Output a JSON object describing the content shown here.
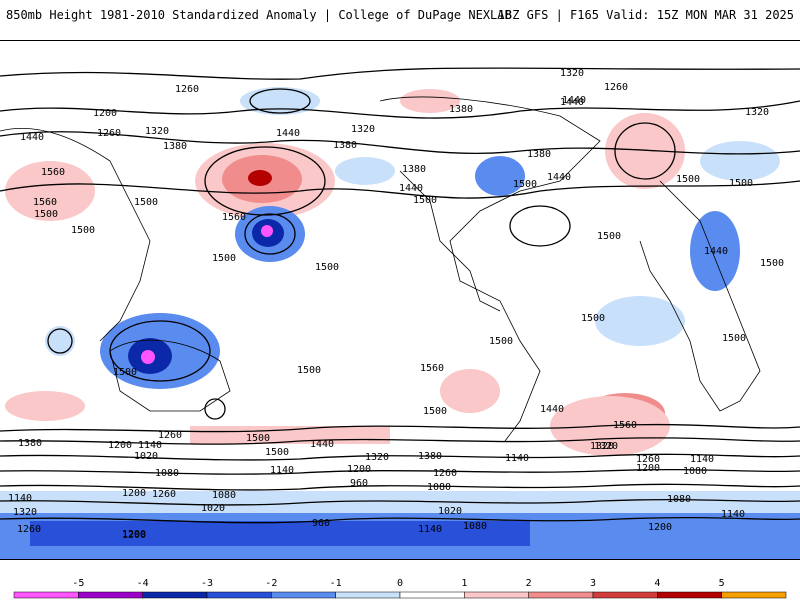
{
  "header": {
    "title": "850mb Height 1981-2010 Standardized Anomaly | College of DuPage NEXLAB",
    "run": "18Z GFS | F165 Valid: 15Z MON MAR 31 2025"
  },
  "contour_labels": [
    {
      "t": "1320"
    },
    {
      "t": "1260"
    },
    {
      "t": "1200"
    },
    {
      "t": "1260"
    },
    {
      "t": "1320"
    },
    {
      "t": "1380"
    },
    {
      "t": "1440"
    },
    {
      "t": "1560"
    },
    {
      "t": "1500"
    },
    {
      "t": "1500"
    },
    {
      "t": "1560"
    },
    {
      "t": "1440"
    },
    {
      "t": "1380"
    },
    {
      "t": "1320"
    },
    {
      "t": "1380"
    },
    {
      "t": "1500"
    },
    {
      "t": "1440"
    },
    {
      "t": "1380"
    },
    {
      "t": "1500"
    },
    {
      "t": "1380"
    },
    {
      "t": "1440"
    },
    {
      "t": "1440"
    },
    {
      "t": "1500"
    },
    {
      "t": "1500"
    },
    {
      "t": "1440"
    },
    {
      "t": "1500"
    },
    {
      "t": "1500"
    },
    {
      "t": "1500"
    },
    {
      "t": "1500"
    },
    {
      "t": "1560"
    },
    {
      "t": "1500"
    },
    {
      "t": "1500"
    },
    {
      "t": "1440"
    },
    {
      "t": "1500"
    },
    {
      "t": "1380"
    },
    {
      "t": "1200"
    },
    {
      "t": "1140"
    },
    {
      "t": "1020"
    },
    {
      "t": "1260"
    },
    {
      "t": "1080"
    },
    {
      "t": "1200"
    },
    {
      "t": "1260"
    },
    {
      "t": "1140"
    },
    {
      "t": "1320"
    },
    {
      "t": "1200"
    },
    {
      "t": "1260"
    },
    {
      "t": "1320"
    },
    {
      "t": "1500"
    },
    {
      "t": "1380"
    },
    {
      "t": "1560"
    },
    {
      "t": "1320"
    },
    {
      "t": "1260"
    },
    {
      "t": "1200"
    },
    {
      "t": "1140"
    },
    {
      "t": "1080"
    },
    {
      "t": "1080"
    },
    {
      "t": "1140"
    },
    {
      "t": "1200"
    },
    {
      "t": "1320"
    },
    {
      "t": "1260"
    },
    {
      "t": "1200"
    },
    {
      "t": "960"
    },
    {
      "t": "960"
    },
    {
      "t": "1020"
    },
    {
      "t": "1080"
    },
    {
      "t": "1140"
    },
    {
      "t": "1020"
    },
    {
      "t": "1080"
    },
    {
      "t": "1200"
    },
    {
      "t": "1140"
    },
    {
      "t": "1080"
    },
    {
      "t": "1140"
    },
    {
      "t": "1320"
    },
    {
      "t": "1260"
    },
    {
      "t": "1440"
    },
    {
      "t": "1500"
    },
    {
      "t": "1500"
    },
    {
      "t": "1500"
    },
    {
      "t": "1440"
    },
    {
      "t": "1500"
    },
    {
      "t": "1560"
    },
    {
      "t": "1500"
    }
  ],
  "colorbar": {
    "ticks": [
      "-5",
      "-4",
      "-3",
      "-2",
      "-1",
      "0",
      "1",
      "2",
      "3",
      "4",
      "5"
    ],
    "colors": [
      "#ff55ff",
      "#9a00c8",
      "#0a28a8",
      "#2850d8",
      "#5a8cf0",
      "#c8e0fa",
      "#ffffff",
      "#fac8c8",
      "#f08c8c",
      "#d23c3c",
      "#b40000",
      "#f5a000"
    ]
  }
}
